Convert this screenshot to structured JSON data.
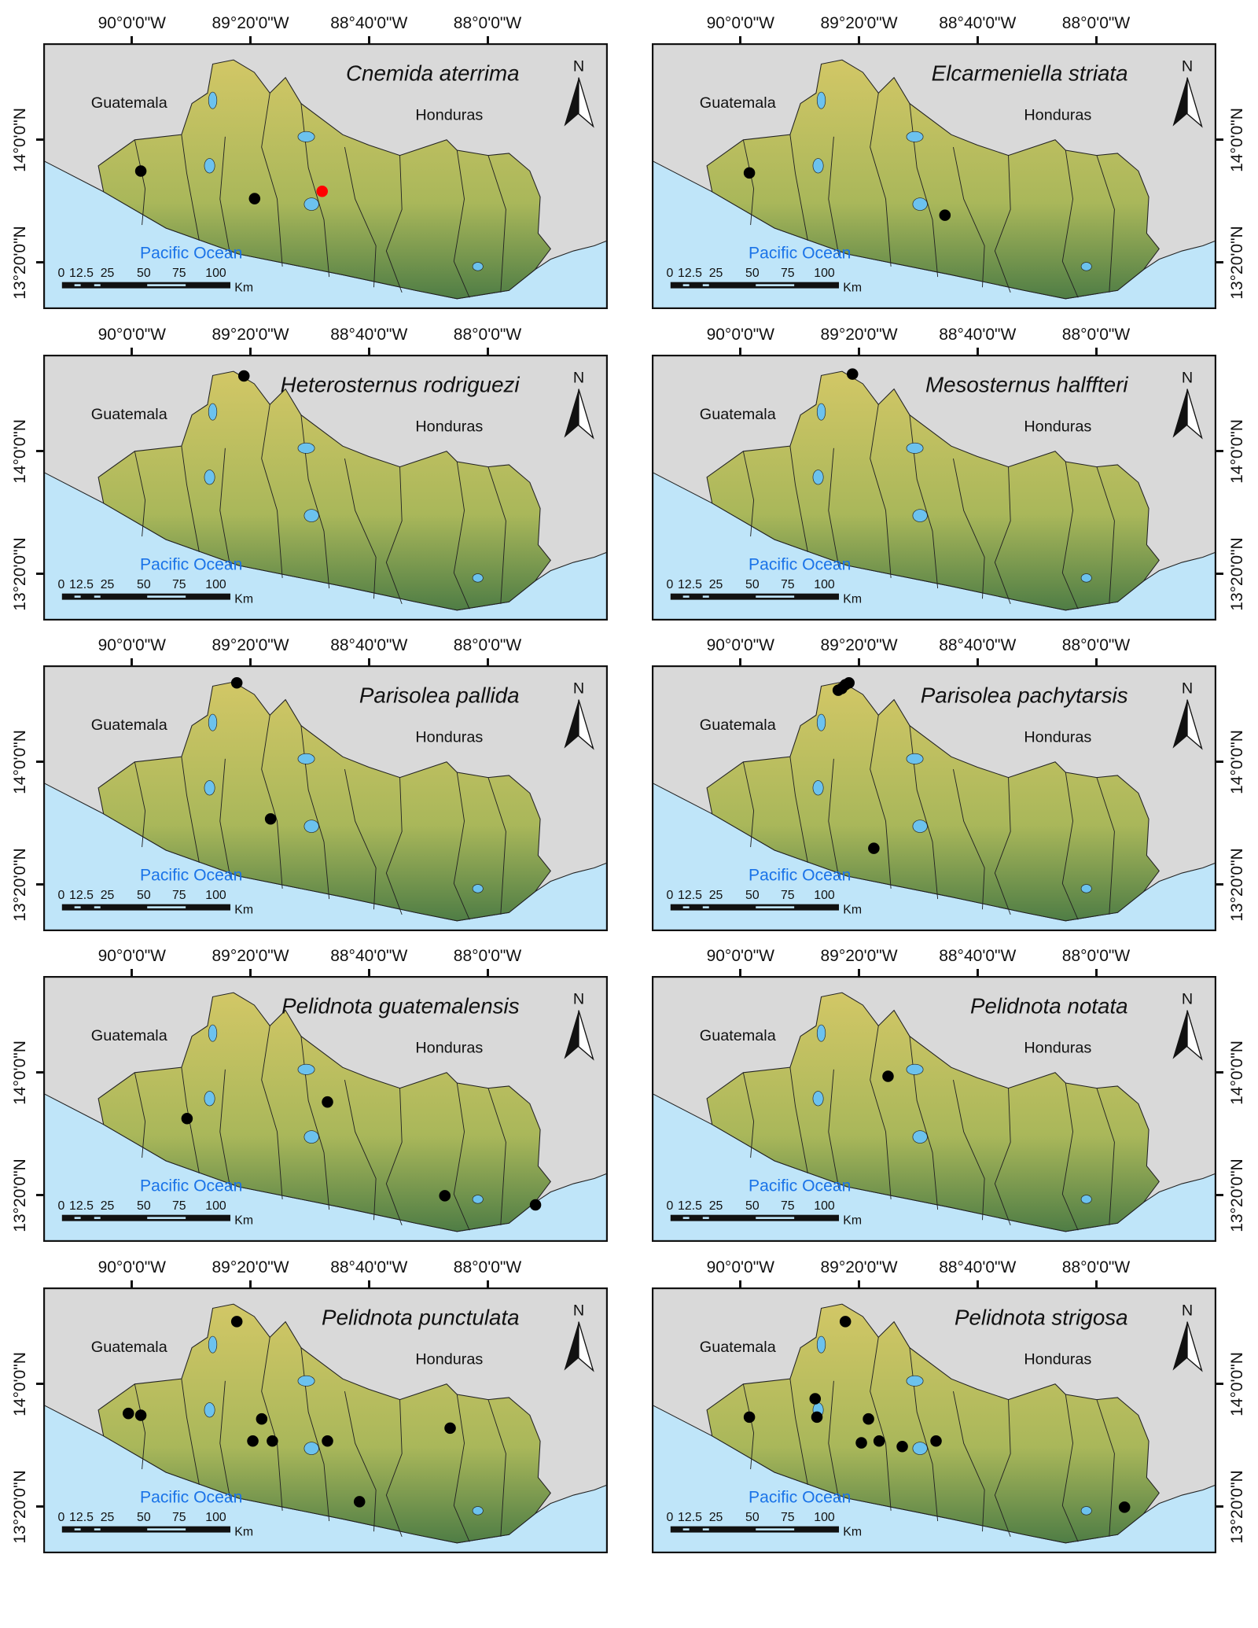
{
  "axes": {
    "lon_ticks": [
      "90°0'0\"W",
      "89°20'0\"W",
      "88°40'0\"W",
      "88°0'0\"W"
    ],
    "lon_values": [
      -90.0,
      -89.3333,
      -88.6667,
      -88.0
    ],
    "lat_ticks": [
      "14°0'0\"N",
      "13°20'0\"N"
    ],
    "lat_values": [
      14.0,
      13.3333
    ]
  },
  "labels": {
    "country_west": "Guatemala",
    "country_east": "Honduras",
    "ocean": "Pacific Ocean",
    "north": "N",
    "scale_ticks": [
      "0",
      "12.5",
      "25",
      "50",
      "75",
      "100"
    ],
    "scale_unit": "Km"
  },
  "colors": {
    "background": "#d9d9d9",
    "ocean": "#bfe5f9",
    "ocean_label": "#1a73e8",
    "land_high": "#d2c766",
    "land_low": "#4f7d45",
    "point": "#000000",
    "point_highlight": "#ff0000"
  },
  "panels": [
    {
      "title": "Cnemida aterrima",
      "points": [
        {
          "lon": -89.95,
          "lat": 13.83
        },
        {
          "lon": -89.31,
          "lat": 13.68
        },
        {
          "lon": -88.93,
          "lat": 13.72,
          "highlight": true
        }
      ]
    },
    {
      "title": "Elcarmeniella striata",
      "points": [
        {
          "lon": -89.95,
          "lat": 13.82
        },
        {
          "lon": -88.85,
          "lat": 13.59
        }
      ]
    },
    {
      "title": "Heterosternus rodriguezi",
      "points": [
        {
          "lon": -89.37,
          "lat": 14.41
        }
      ]
    },
    {
      "title": "Mesosternus halffteri",
      "points": [
        {
          "lon": -89.37,
          "lat": 14.42
        }
      ]
    },
    {
      "title": "Parisolea pallida",
      "points": [
        {
          "lon": -89.41,
          "lat": 14.43
        },
        {
          "lon": -89.22,
          "lat": 13.69
        }
      ]
    },
    {
      "title": "Parisolea pachytarsis",
      "points": [
        {
          "lon": -89.45,
          "lat": 14.39
        },
        {
          "lon": -89.43,
          "lat": 14.4
        },
        {
          "lon": -89.41,
          "lat": 14.42
        },
        {
          "lon": -89.39,
          "lat": 14.43
        },
        {
          "lon": -89.25,
          "lat": 13.53
        }
      ]
    },
    {
      "title": "Pelidnota guatemalensis",
      "points": [
        {
          "lon": -89.69,
          "lat": 13.75
        },
        {
          "lon": -88.9,
          "lat": 13.84
        },
        {
          "lon": -88.24,
          "lat": 13.33
        },
        {
          "lon": -87.73,
          "lat": 13.28
        }
      ]
    },
    {
      "title": "Pelidnota notata",
      "points": [
        {
          "lon": -89.17,
          "lat": 13.98
        }
      ]
    },
    {
      "title": "Pelidnota punctulata",
      "points": [
        {
          "lon": -89.41,
          "lat": 14.34
        },
        {
          "lon": -90.02,
          "lat": 13.84
        },
        {
          "lon": -89.95,
          "lat": 13.83
        },
        {
          "lon": -89.27,
          "lat": 13.81
        },
        {
          "lon": -89.32,
          "lat": 13.69
        },
        {
          "lon": -89.21,
          "lat": 13.69
        },
        {
          "lon": -88.9,
          "lat": 13.69
        },
        {
          "lon": -88.21,
          "lat": 13.76
        },
        {
          "lon": -88.72,
          "lat": 13.36
        }
      ]
    },
    {
      "title": "Pelidnota strigosa",
      "points": [
        {
          "lon": -89.41,
          "lat": 14.34
        },
        {
          "lon": -89.95,
          "lat": 13.82
        },
        {
          "lon": -89.58,
          "lat": 13.92
        },
        {
          "lon": -89.57,
          "lat": 13.82
        },
        {
          "lon": -89.28,
          "lat": 13.81
        },
        {
          "lon": -89.32,
          "lat": 13.68
        },
        {
          "lon": -89.22,
          "lat": 13.69
        },
        {
          "lon": -89.09,
          "lat": 13.66
        },
        {
          "lon": -88.9,
          "lat": 13.69
        },
        {
          "lon": -87.84,
          "lat": 13.33
        }
      ]
    }
  ]
}
